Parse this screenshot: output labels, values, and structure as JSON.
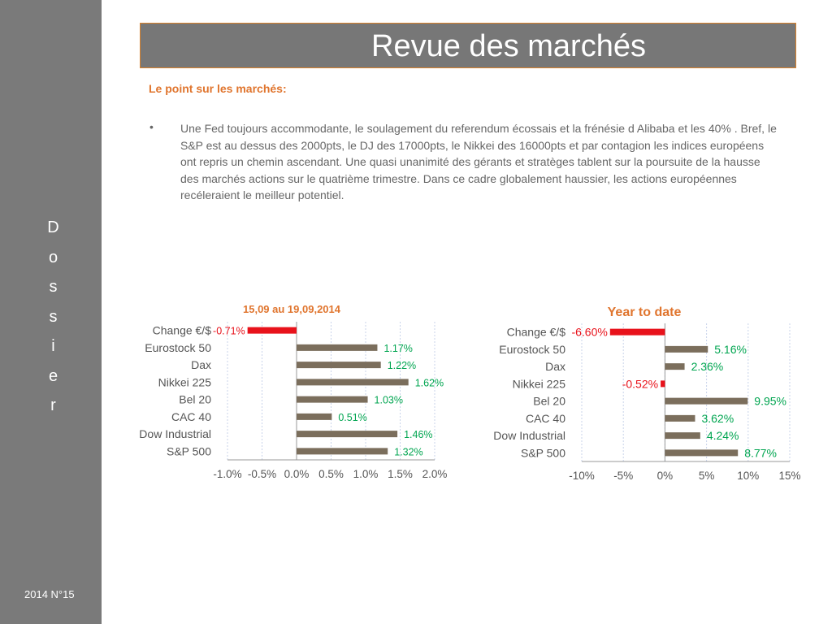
{
  "sidebar": {
    "vertical_word": "Dossier",
    "issue": "2014 N°15"
  },
  "title": "Revue des marchés",
  "subtitle": "Le point sur les marchés:",
  "bullet": "•",
  "paragraph": "Une Fed toujours accommodante, le soulagement du referendum écossais et la frénésie d Alibaba et les 40% .  Bref, le S&P est au dessus des 2000pts, le DJ des 17000pts, le Nikkei des 16000pts et par contagion les indices européens ont repris un chemin ascendant. Une quasi unanimité des gérants et stratèges tablent sur la poursuite de la hausse des marchés actions sur le quatrième trimestre. Dans ce cadre globalement haussier, les actions européennes recéleraient le meilleur potentiel.",
  "colors": {
    "bar": "#7b6e5c",
    "negative_bar": "#e8121b",
    "positive_label": "#00a550",
    "negative_label": "#e8121b",
    "title_orange": "#e0752e",
    "sidebar": "#7a7a7a"
  },
  "chart_data": [
    {
      "type": "bar",
      "orientation": "horizontal",
      "title": "15,09 au 19,09,2014",
      "categories": [
        "Change €/$",
        "Eurostock 50",
        "Dax",
        "Nikkei 225",
        "Bel 20",
        "CAC 40",
        "Dow Industrial",
        "S&P 500"
      ],
      "values": [
        -0.71,
        1.17,
        1.22,
        1.62,
        1.03,
        0.51,
        1.46,
        1.32
      ],
      "labels": [
        "-0.71%",
        "1.17%",
        "1.22%",
        "1.62%",
        "1.03%",
        "0.51%",
        "1.46%",
        "1.32%"
      ],
      "xlim": [
        -1.0,
        2.0
      ],
      "ticks": [
        "-1.0%",
        "-0.5%",
        "0.0%",
        "0.5%",
        "1.0%",
        "1.5%",
        "2.0%"
      ],
      "grid": true
    },
    {
      "type": "bar",
      "orientation": "horizontal",
      "title": "Year to date",
      "categories": [
        "Change €/$",
        "Eurostock 50",
        "Dax",
        "Nikkei 225",
        "Bel 20",
        "CAC 40",
        "Dow Industrial",
        "S&P 500"
      ],
      "values": [
        -6.6,
        5.16,
        2.36,
        -0.52,
        9.95,
        3.62,
        4.24,
        8.77
      ],
      "labels": [
        "-6.60%",
        "5.16%",
        "2.36%",
        "-0.52%",
        "9.95%",
        "3.62%",
        "4.24%",
        "8.77%"
      ],
      "xlim": [
        -10,
        15
      ],
      "ticks": [
        "-10%",
        "-5%",
        "0%",
        "5%",
        "10%",
        "15%"
      ],
      "grid": true
    }
  ]
}
